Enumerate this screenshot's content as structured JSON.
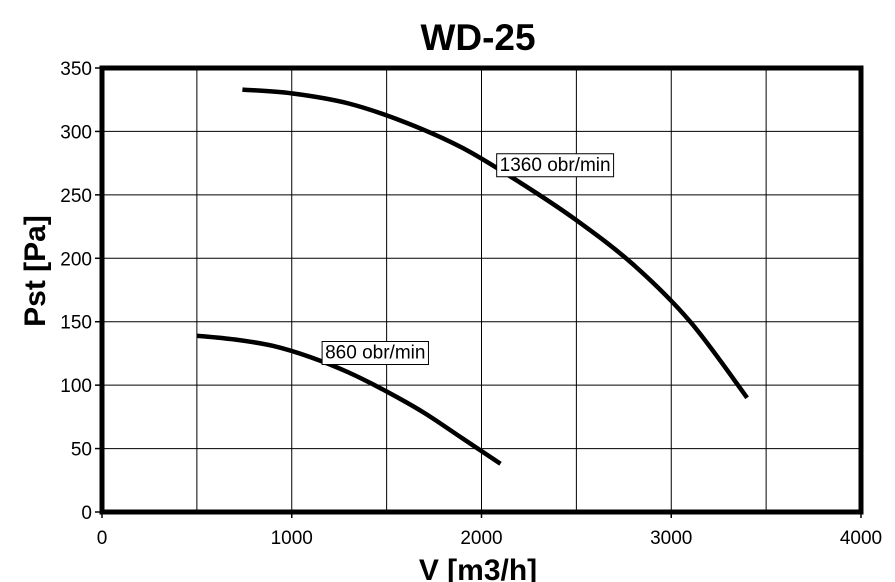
{
  "chart_data": {
    "type": "line",
    "title": "WD-25",
    "xlabel": "V [m3/h]",
    "ylabel": "Pst [Pa]",
    "xlim": [
      0,
      4000
    ],
    "ylim": [
      0,
      350
    ],
    "x_ticks": [
      0,
      1000,
      2000,
      3000,
      4000
    ],
    "y_ticks": [
      0,
      50,
      100,
      150,
      200,
      250,
      300,
      350
    ],
    "grid": true,
    "series": [
      {
        "name": "1360 obr/min",
        "x": [
          740,
          1000,
          1300,
          1600,
          1900,
          2200,
          2500,
          2800,
          3100,
          3400
        ],
        "y": [
          333,
          330,
          322,
          307,
          287,
          260,
          230,
          195,
          150,
          90
        ]
      },
      {
        "name": "860 obr/min",
        "x": [
          500,
          700,
          900,
          1100,
          1300,
          1500,
          1700,
          1900,
          2100
        ],
        "y": [
          139,
          136,
          131,
          122,
          110,
          95,
          78,
          58,
          38
        ]
      }
    ],
    "colors": {
      "line": "#000000",
      "grid": "#000000",
      "background": "#ffffff"
    }
  }
}
